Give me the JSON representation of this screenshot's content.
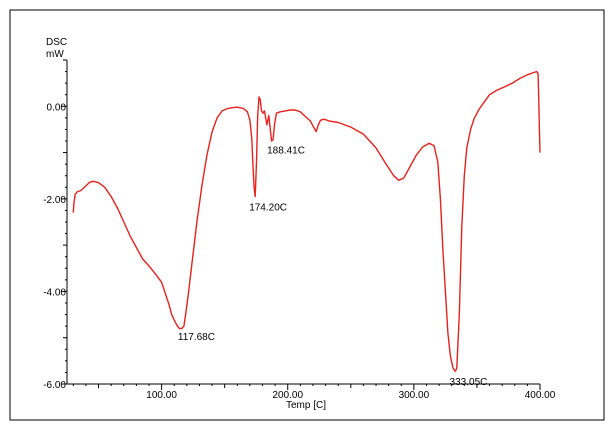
{
  "colors": {
    "curve": "#e8211d",
    "axis": "#000000",
    "frame": "#000000",
    "background": "#ffffff"
  },
  "chart_data": {
    "type": "line",
    "title": "",
    "ylabel_lines": [
      "DSC",
      "mW"
    ],
    "xlabel": "Temp [C]",
    "xlim": [
      25,
      400
    ],
    "ylim": [
      -6,
      1.0
    ],
    "x_ticks": [
      100,
      200,
      300,
      400
    ],
    "x_tick_labels": [
      "100.00",
      "200.00",
      "300.00",
      "400.00"
    ],
    "y_ticks": [
      0,
      -2,
      -4,
      -6
    ],
    "y_tick_labels": [
      "0.00",
      "-2.00",
      "-4.00",
      "-6.00"
    ],
    "grid": false,
    "legend": "none",
    "series": [
      {
        "x": [
          30,
          30.5,
          31.5,
          33,
          36,
          40,
          43,
          46,
          50,
          55,
          60,
          65,
          70,
          75,
          80,
          85,
          90,
          95,
          100,
          103,
          106,
          108,
          110,
          112,
          114,
          116,
          117.68,
          119,
          121,
          124,
          128,
          132,
          136,
          140,
          144,
          148,
          152,
          156,
          160,
          165,
          168,
          170,
          171.5,
          172.5,
          173.3,
          174.2,
          175.2,
          176.2,
          177.2,
          178.2,
          179.2,
          180.5,
          181.5,
          182.5,
          183.5,
          185,
          186.2,
          187.2,
          188.41,
          189.5,
          191,
          194,
          198,
          202,
          206,
          210,
          214,
          218,
          220.5,
          222.5,
          224,
          226,
          229,
          233,
          240,
          250,
          260,
          270,
          278,
          284,
          288,
          292,
          297,
          302,
          307,
          312,
          316,
          319,
          321,
          323,
          325,
          327,
          329,
          331,
          332.5,
          333.05,
          334,
          336,
          338,
          340,
          342,
          345,
          348,
          352,
          356,
          360,
          366,
          372,
          378,
          384,
          390,
          395,
          397.5,
          398.5,
          399,
          399.5,
          400
        ],
        "y": [
          -2.3,
          -2.1,
          -1.9,
          -1.85,
          -1.82,
          -1.72,
          -1.64,
          -1.62,
          -1.65,
          -1.75,
          -1.95,
          -2.2,
          -2.5,
          -2.8,
          -3.05,
          -3.3,
          -3.45,
          -3.62,
          -3.8,
          -4.05,
          -4.3,
          -4.5,
          -4.62,
          -4.72,
          -4.8,
          -4.8,
          -4.75,
          -4.5,
          -4.1,
          -3.4,
          -2.5,
          -1.7,
          -1.05,
          -0.55,
          -0.25,
          -0.1,
          -0.05,
          -0.03,
          -0.02,
          -0.05,
          -0.12,
          -0.3,
          -0.7,
          -1.3,
          -1.75,
          -1.95,
          -1.2,
          -0.2,
          0.2,
          0.15,
          -0.1,
          -0.15,
          -0.1,
          -0.25,
          -0.4,
          -0.2,
          -0.5,
          -0.75,
          -0.72,
          -0.4,
          -0.15,
          -0.12,
          -0.1,
          -0.08,
          -0.08,
          -0.12,
          -0.22,
          -0.32,
          -0.45,
          -0.55,
          -0.42,
          -0.3,
          -0.28,
          -0.32,
          -0.35,
          -0.45,
          -0.6,
          -0.9,
          -1.25,
          -1.5,
          -1.6,
          -1.55,
          -1.3,
          -1.05,
          -0.88,
          -0.8,
          -0.85,
          -1.2,
          -2.0,
          -3.1,
          -4.0,
          -4.9,
          -5.4,
          -5.65,
          -5.72,
          -5.72,
          -5.65,
          -4.5,
          -2.6,
          -1.5,
          -0.9,
          -0.5,
          -0.25,
          -0.05,
          0.1,
          0.25,
          0.35,
          0.42,
          0.5,
          0.6,
          0.68,
          0.73,
          0.75,
          0.7,
          0.2,
          -0.5,
          -1.0
        ]
      }
    ],
    "annotations": [
      {
        "text": "117.68C",
        "x": 117.68,
        "y": -4.75,
        "position": "below"
      },
      {
        "text": "174.20C",
        "x": 174.2,
        "y": -1.95,
        "position": "below"
      },
      {
        "text": "188.41C",
        "x": 188.41,
        "y": -0.72,
        "position": "below"
      },
      {
        "text": "333.05C",
        "x": 333.05,
        "y": -5.72,
        "position": "below"
      }
    ]
  }
}
